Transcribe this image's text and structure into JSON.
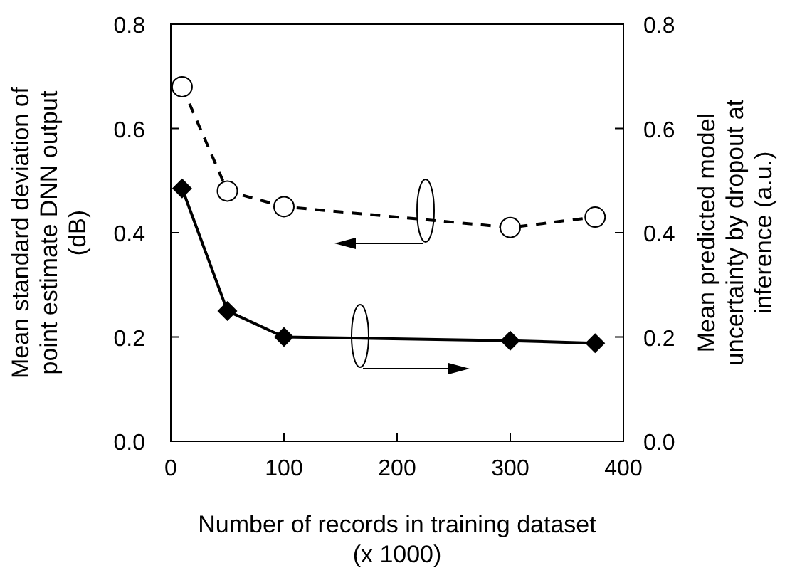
{
  "chart_data": {
    "type": "line",
    "xlabel": "Number of records in training dataset\n(x 1000)",
    "ylabel": "Mean standard deviation of\npoint estimate DNN output\n(dB)",
    "y2label": "Mean predicted model\nuncertainty by dropout at\ninference (a.u.)",
    "x": [
      10,
      50,
      100,
      300,
      375
    ],
    "series": [
      {
        "color": "#000000",
        "values": [
          0.68,
          0.48,
          0.45,
          0.41,
          0.43
        ],
        "marker": "circle",
        "line_style": "dashed"
      },
      {
        "color": "#000000",
        "values": [
          0.485,
          0.25,
          0.2,
          0.193,
          0.188
        ],
        "marker": "diamond",
        "line_style": "solid",
        "axis": "y2"
      }
    ],
    "xlim": [
      0,
      400
    ],
    "xticks": [
      0,
      100,
      200,
      300,
      400
    ],
    "ylim": [
      0,
      0.8
    ],
    "yticks": [
      {
        "value": 0,
        "label": "0.0"
      },
      0.2,
      0.4,
      0.6,
      0.8
    ],
    "y2lim": [
      0,
      0.8
    ],
    "y2ticks": [
      {
        "value": 0,
        "label": "0.0"
      },
      0.2,
      0.4,
      0.6,
      0.8
    ],
    "grid": false
  }
}
